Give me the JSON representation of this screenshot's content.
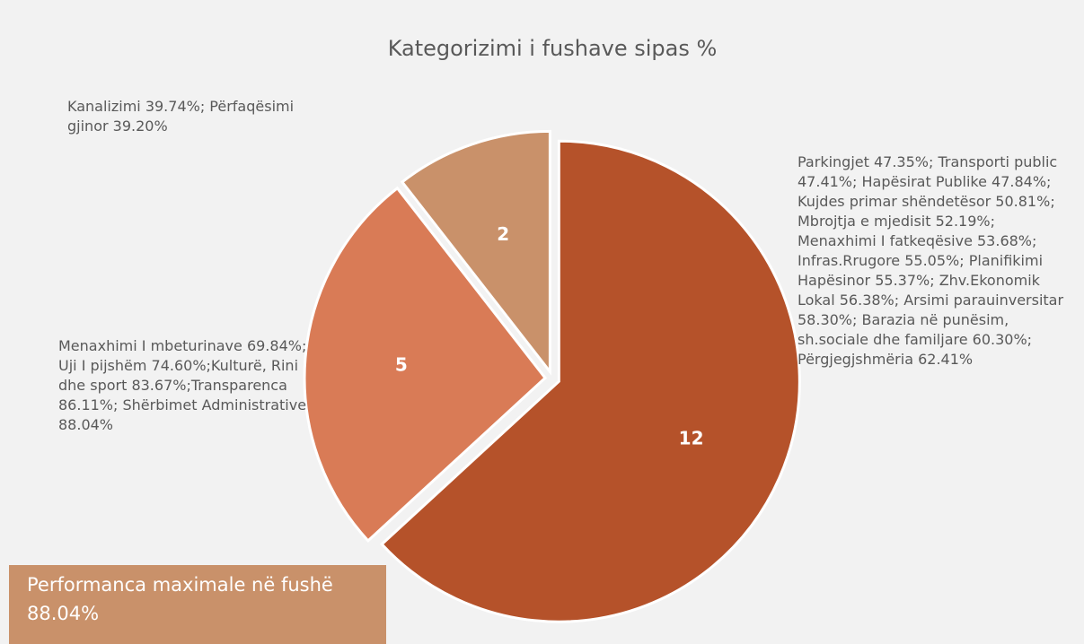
{
  "chart_data": {
    "type": "pie",
    "title": "Kategorizimi i fushave sipas %",
    "categories": [
      "Parkingjet 47.35%; Transporti public 47.41%; Hapësirat Publike 47.84%; Kujdes primar shëndetësor 50.81%; Mbrojtja e mjedisit 52.19%; Menaxhimi I fatkeqësive 53.68%; Infras.Rrugore 55.05%; Planifikimi Hapësinor 55.37%; Zhv.Ekonomik Lokal  56.38%; Arsimi parauinversitar 58.30%; Barazia në punësim, sh.sociale dhe familjare 60.30%; Përgjegjshmëria 62.41%",
      "Menaxhimi I mbeturinave 69.84%; Uji I pijshëm 74.60%;Kulturë, Rini dhe sport 83.67%;Transparenca 86.11%;   Shërbimet Administrative 88.04%",
      "Kanalizimi 39.74%; Përfaqësimi gjinor 39.20%"
    ],
    "values": [
      12,
      5,
      2
    ],
    "colors": [
      "#b5522a",
      "#d97b56",
      "#c9916a"
    ],
    "annotation": "Performanca maximale në fushë 88.04%"
  }
}
